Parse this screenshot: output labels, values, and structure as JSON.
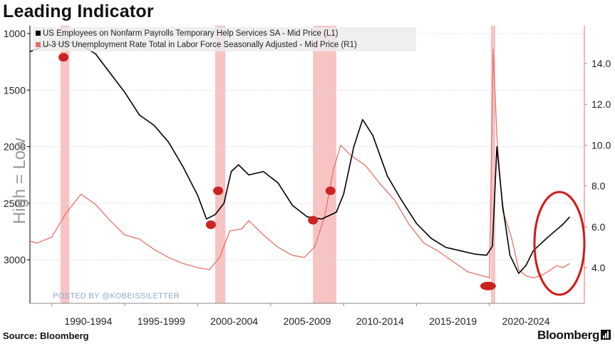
{
  "header": {
    "title": "Leading Indicator"
  },
  "footer": {
    "source": "Source: Bloomberg",
    "brand": "Bloomberg"
  },
  "watermark": {
    "text": "High = Low",
    "posted_by": "POSTED BY @KOBEISSILETTER"
  },
  "colors": {
    "payrolls": "#000000",
    "unemployment": "#e8706a",
    "recession": "#f6b8b8",
    "highlight": "#d01818"
  },
  "chart_data": {
    "type": "line",
    "x_tick_labels": [
      "1990-1994",
      "1995-1999",
      "2000-2004",
      "2005-2009",
      "2010-2014",
      "2015-2019",
      "2020-2024"
    ],
    "xlim": [
      1988.5,
      2026.5
    ],
    "left_axis": {
      "ticks": [
        1000,
        1500,
        2000,
        2500,
        3000
      ],
      "range": [
        1000,
        3300
      ],
      "inverted": true
    },
    "right_axis": {
      "ticks": [
        "4.0",
        "6.0",
        "8.0",
        "10.0",
        "12.0",
        "14.0"
      ],
      "range": [
        2.4,
        15.2
      ]
    },
    "legend": {
      "placement": "top-left"
    },
    "recessions": [
      [
        1990.6,
        1991.2
      ],
      [
        2001.2,
        2001.9
      ],
      [
        2007.9,
        2009.5
      ],
      [
        2020.1,
        2020.35
      ]
    ],
    "series": [
      {
        "name": "US Employees on Nonfarm Payrolls Temporary Help Services SA - Mid Price (L1)",
        "axis": "left",
        "points": [
          [
            1988.5,
            1160
          ],
          [
            1989.5,
            1110
          ],
          [
            1990.5,
            1090
          ],
          [
            1991.3,
            1080
          ],
          [
            1992.0,
            1100
          ],
          [
            1993.0,
            1180
          ],
          [
            1994.0,
            1350
          ],
          [
            1995.0,
            1520
          ],
          [
            1996.0,
            1720
          ],
          [
            1997.0,
            1810
          ],
          [
            1998.0,
            1960
          ],
          [
            1999.0,
            2180
          ],
          [
            2000.0,
            2430
          ],
          [
            2000.6,
            2640
          ],
          [
            2001.2,
            2600
          ],
          [
            2001.8,
            2500
          ],
          [
            2002.3,
            2220
          ],
          [
            2002.8,
            2160
          ],
          [
            2003.5,
            2250
          ],
          [
            2004.5,
            2220
          ],
          [
            2005.5,
            2320
          ],
          [
            2006.5,
            2520
          ],
          [
            2007.5,
            2620
          ],
          [
            2008.5,
            2640
          ],
          [
            2009.5,
            2580
          ],
          [
            2010.0,
            2420
          ],
          [
            2010.7,
            2000
          ],
          [
            2011.3,
            1760
          ],
          [
            2012.0,
            1900
          ],
          [
            2013.0,
            2260
          ],
          [
            2014.0,
            2480
          ],
          [
            2015.0,
            2680
          ],
          [
            2016.0,
            2810
          ],
          [
            2017.0,
            2890
          ],
          [
            2018.0,
            2920
          ],
          [
            2019.0,
            2950
          ],
          [
            2019.8,
            2960
          ],
          [
            2020.2,
            2880
          ],
          [
            2020.5,
            2000
          ],
          [
            2020.9,
            2520
          ],
          [
            2021.4,
            2960
          ],
          [
            2022.0,
            3120
          ],
          [
            2022.5,
            3050
          ],
          [
            2023.0,
            2920
          ],
          [
            2024.0,
            2800
          ],
          [
            2025.0,
            2690
          ],
          [
            2025.5,
            2620
          ]
        ]
      },
      {
        "name": "U-3 US Unemployment Rate Total in Labor Force Seasonally Adjusted - Mid Price (R1)",
        "axis": "right",
        "points": [
          [
            1988.5,
            5.3
          ],
          [
            1989.0,
            5.2
          ],
          [
            1990.0,
            5.5
          ],
          [
            1991.0,
            6.7
          ],
          [
            1992.0,
            7.6
          ],
          [
            1993.0,
            7.1
          ],
          [
            1994.0,
            6.3
          ],
          [
            1995.0,
            5.6
          ],
          [
            1996.0,
            5.4
          ],
          [
            1997.0,
            4.9
          ],
          [
            1998.0,
            4.5
          ],
          [
            1999.0,
            4.2
          ],
          [
            2000.0,
            4.0
          ],
          [
            2000.8,
            3.9
          ],
          [
            2001.5,
            4.5
          ],
          [
            2002.2,
            5.8
          ],
          [
            2003.0,
            5.9
          ],
          [
            2003.5,
            6.3
          ],
          [
            2004.5,
            5.6
          ],
          [
            2005.5,
            5.0
          ],
          [
            2006.5,
            4.6
          ],
          [
            2007.3,
            4.5
          ],
          [
            2008.0,
            5.0
          ],
          [
            2008.7,
            6.5
          ],
          [
            2009.3,
            8.8
          ],
          [
            2009.8,
            10.0
          ],
          [
            2010.5,
            9.5
          ],
          [
            2011.5,
            9.0
          ],
          [
            2012.5,
            8.1
          ],
          [
            2013.5,
            7.3
          ],
          [
            2014.5,
            6.1
          ],
          [
            2015.5,
            5.2
          ],
          [
            2016.5,
            4.8
          ],
          [
            2017.5,
            4.3
          ],
          [
            2018.5,
            3.8
          ],
          [
            2019.5,
            3.6
          ],
          [
            2020.0,
            3.5
          ],
          [
            2020.25,
            14.7
          ],
          [
            2020.5,
            10.5
          ],
          [
            2020.9,
            6.8
          ],
          [
            2021.5,
            5.5
          ],
          [
            2022.0,
            3.9
          ],
          [
            2022.5,
            3.6
          ],
          [
            2023.0,
            3.5
          ],
          [
            2023.5,
            3.6
          ],
          [
            2024.0,
            3.8
          ],
          [
            2024.6,
            4.1
          ],
          [
            2025.0,
            4.0
          ],
          [
            2025.5,
            4.2
          ]
        ]
      }
    ]
  }
}
